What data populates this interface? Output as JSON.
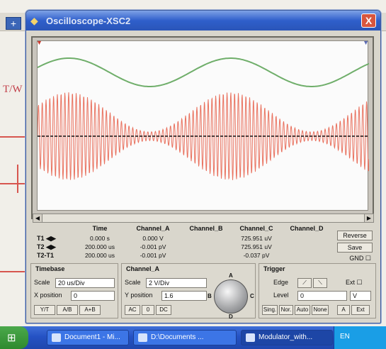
{
  "window": {
    "title": "Oscilloscope-XSC2",
    "close_label": "X",
    "background_label": "T/W"
  },
  "screen": {
    "markers": {
      "t1": "T1",
      "t2": "T2"
    },
    "colors": {
      "channel_a": "#6fae6a",
      "channel_c": "#e9725f",
      "cursor": "#111111"
    }
  },
  "measurements": {
    "headers": [
      "Time",
      "Channel_A",
      "Channel_B",
      "Channel_C",
      "Channel_D"
    ],
    "rows": [
      {
        "label": "T1",
        "time": "0.000 s",
        "channel_a": "0.000 V",
        "channel_b": "",
        "channel_c": "725.951 uV",
        "channel_d": ""
      },
      {
        "label": "T2",
        "time": "200.000 us",
        "channel_a": "-0.001 pV",
        "channel_b": "",
        "channel_c": "725.951 uV",
        "channel_d": ""
      },
      {
        "label": "T2-T1",
        "time": "200.000 us",
        "channel_a": "-0.001 pV",
        "channel_b": "",
        "channel_c": "-0.037 pV",
        "channel_d": ""
      }
    ],
    "buttons": {
      "reverse": "Reverse",
      "save": "Save"
    },
    "ext_trigger": "GND"
  },
  "timebase": {
    "title": "Timebase",
    "scale_label": "Scale",
    "scale_value": "20 us/Div",
    "xpos_label": "X position",
    "xpos_value": "0",
    "modes": [
      "Y/T",
      "A/B",
      "A+B"
    ]
  },
  "channel": {
    "title": "Channel_A",
    "scale_label": "Scale",
    "scale_value": "2 V/Div",
    "ypos_label": "Y position",
    "ypos_value": "1.6",
    "coupling": [
      "AC",
      "0",
      "DC"
    ],
    "knob_letters": [
      "A",
      "B",
      "C",
      "D"
    ]
  },
  "trigger": {
    "title": "Trigger",
    "edge_label": "Edge",
    "level_label": "Level",
    "level_value": "0",
    "level_unit": "V",
    "ext_label": "Ext",
    "modes": [
      "Sing.",
      "Nor.",
      "Auto",
      "None"
    ],
    "sources": [
      "A",
      "Ext"
    ]
  },
  "taskbar": {
    "tasks": [
      "Document1 - Mi...",
      "D:\\Documents ...",
      "Modulator_with..."
    ],
    "language": "EN"
  }
}
